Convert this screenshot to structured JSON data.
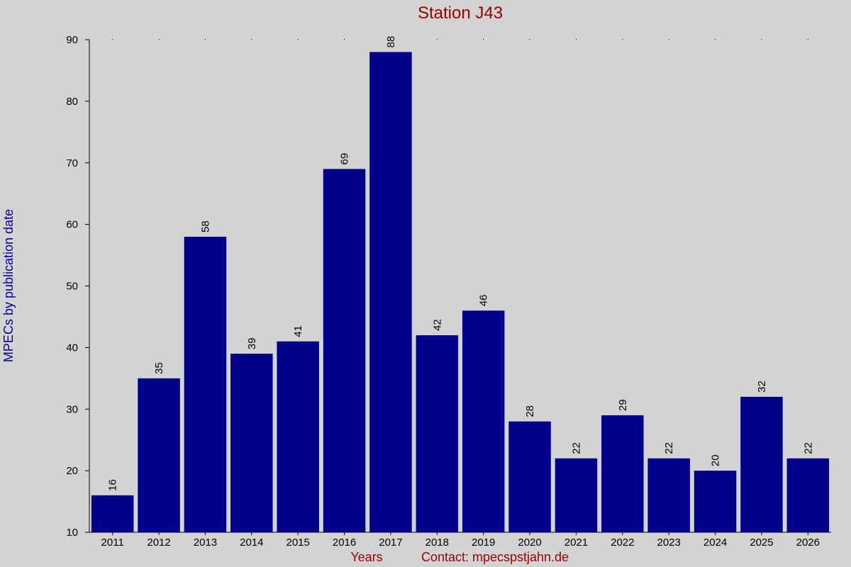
{
  "chart_data": {
    "type": "bar",
    "title": "Station J43",
    "xlabel": "Years",
    "ylabel": "MPECs by publication date",
    "footer_contact": "Contact: mpecspstjahn.de",
    "categories": [
      "2011",
      "2012",
      "2013",
      "2014",
      "2015",
      "2016",
      "2017",
      "2018",
      "2019",
      "2020",
      "2021",
      "2022",
      "2023",
      "2024",
      "2025",
      "2026"
    ],
    "values": [
      16,
      35,
      58,
      39,
      41,
      69,
      88,
      42,
      46,
      28,
      22,
      29,
      22,
      20,
      32,
      22
    ],
    "ylim": [
      10,
      90
    ],
    "yticks": [
      10,
      20,
      30,
      40,
      50,
      60,
      70,
      80,
      90
    ],
    "grid": false,
    "colors": {
      "bar": "#00008b",
      "background": "#d3d3d3",
      "title": "#990000",
      "ylabel": "#000099"
    }
  }
}
